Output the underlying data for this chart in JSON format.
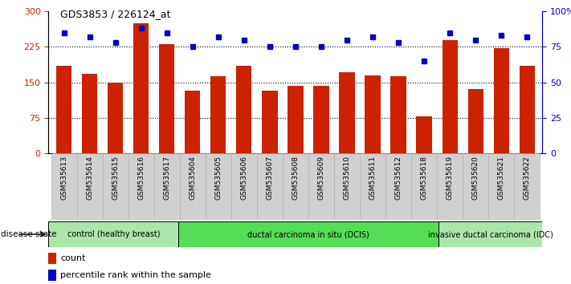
{
  "title": "GDS3853 / 226124_at",
  "samples": [
    "GSM535613",
    "GSM535614",
    "GSM535615",
    "GSM535616",
    "GSM535617",
    "GSM535604",
    "GSM535605",
    "GSM535606",
    "GSM535607",
    "GSM535608",
    "GSM535609",
    "GSM535610",
    "GSM535611",
    "GSM535612",
    "GSM535618",
    "GSM535619",
    "GSM535620",
    "GSM535621",
    "GSM535622"
  ],
  "counts": [
    185,
    168,
    150,
    275,
    230,
    133,
    163,
    185,
    133,
    143,
    143,
    172,
    165,
    163,
    78,
    240,
    136,
    222,
    185
  ],
  "percentiles": [
    85,
    82,
    78,
    88,
    85,
    75,
    82,
    80,
    75,
    75,
    75,
    80,
    82,
    78,
    65,
    85,
    80,
    83,
    82
  ],
  "bar_color": "#cc2200",
  "dot_color": "#0000cc",
  "ylim_left": [
    0,
    300
  ],
  "ylim_right": [
    0,
    100
  ],
  "yticks_left": [
    0,
    75,
    150,
    225,
    300
  ],
  "yticks_right": [
    0,
    25,
    50,
    75,
    100
  ],
  "yticklabels_right": [
    "0",
    "25",
    "50",
    "75",
    "100%"
  ],
  "grid_lines": [
    75,
    150,
    225
  ],
  "groups": [
    {
      "label": "control (healthy breast)",
      "start": 0,
      "end": 5,
      "color": "#aae8aa"
    },
    {
      "label": "ductal carcinoma in situ (DCIS)",
      "start": 5,
      "end": 15,
      "color": "#55dd55"
    },
    {
      "label": "invasive ductal carcinoma (IDC)",
      "start": 15,
      "end": 19,
      "color": "#aae8aa"
    }
  ],
  "disease_state_label": "disease state",
  "legend_count_label": "count",
  "legend_pct_label": "percentile rank within the sample",
  "bg_color": "#ffffff",
  "sample_bg_color": "#d0d0d0"
}
